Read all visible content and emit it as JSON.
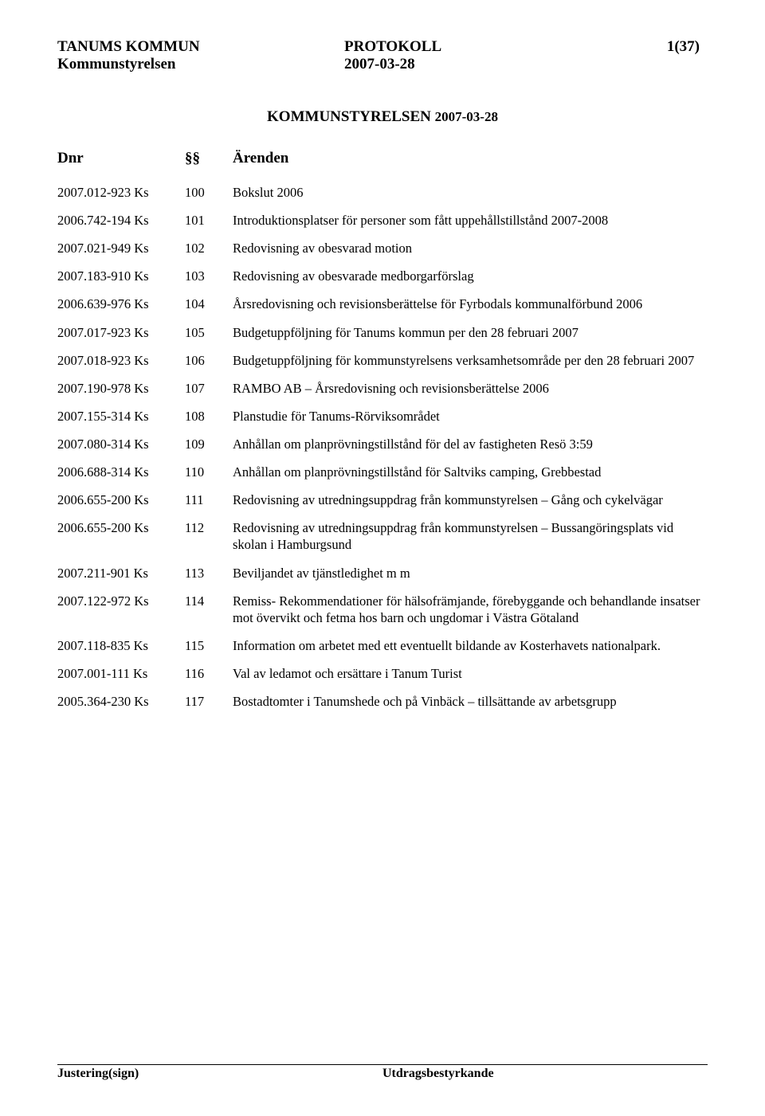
{
  "header": {
    "org": "TANUMS KOMMUN",
    "sub": "Kommunstyrelsen",
    "doc_type": "PROTOKOLL",
    "date": "2007-03-28",
    "page_indicator": "1(37)"
  },
  "title": {
    "main": "KOMMUNSTYRELSEN",
    "date": "2007-03-28"
  },
  "columns": {
    "dnr": "Dnr",
    "section": "§§",
    "subject": "Ärenden"
  },
  "rows": [
    {
      "dnr": "2007.012-923 Ks",
      "sec": "100",
      "text": "Bokslut 2006"
    },
    {
      "dnr": "2006.742-194 Ks",
      "sec": "101",
      "text": "Introduktionsplatser för personer som fått uppehållstillstånd 2007-2008"
    },
    {
      "dnr": "2007.021-949 Ks",
      "sec": "102",
      "text": "Redovisning av obesvarad motion"
    },
    {
      "dnr": "2007.183-910 Ks",
      "sec": "103",
      "text": "Redovisning av obesvarade medborgarförslag"
    },
    {
      "dnr": "2006.639-976 Ks",
      "sec": "104",
      "text": "Årsredovisning och revisionsberättelse för Fyrbodals kommunalförbund 2006"
    },
    {
      "dnr": "2007.017-923 Ks",
      "sec": "105",
      "text": "Budgetuppföljning för Tanums kommun per den 28 februari 2007"
    },
    {
      "dnr": "2007.018-923 Ks",
      "sec": "106",
      "text": "Budgetuppföljning för kommunstyrelsens verksamhetsområde per den 28 februari 2007"
    },
    {
      "dnr": "2007.190-978 Ks",
      "sec": "107",
      "text": "RAMBO AB – Årsredovisning och revisionsberättelse 2006"
    },
    {
      "dnr": "2007.155-314 Ks",
      "sec": "108",
      "text": "Planstudie för Tanums-Rörviksområdet"
    },
    {
      "dnr": "2007.080-314 Ks",
      "sec": "109",
      "text": "Anhållan om planprövningstillstånd för del av fastigheten Resö 3:59"
    },
    {
      "dnr": "2006.688-314 Ks",
      "sec": "110",
      "text": "Anhållan om planprövningstillstånd för Saltviks camping, Grebbestad"
    },
    {
      "dnr": "2006.655-200 Ks",
      "sec": "111",
      "text": "Redovisning av utredningsuppdrag från kommunstyrelsen – Gång och cykelvägar"
    },
    {
      "dnr": "2006.655-200 Ks",
      "sec": "112",
      "text": "Redovisning av utredningsuppdrag från kommunstyrelsen – Bussangöringsplats vid skolan i Hamburgsund"
    },
    {
      "dnr": "2007.211-901 Ks",
      "sec": "113",
      "text": "Beviljandet av tjänstledighet m m"
    },
    {
      "dnr": "2007.122-972 Ks",
      "sec": "114",
      "text": "Remiss- Rekommendationer för hälsofrämjande, förebyggande och behandlande insatser mot övervikt och fetma hos barn och ungdomar i Västra Götaland"
    },
    {
      "dnr": "2007.118-835 Ks",
      "sec": "115",
      "text": "Information om arbetet med ett eventuellt bildande av Kosterhavets nationalpark."
    },
    {
      "dnr": "2007.001-111 Ks",
      "sec": "116",
      "text": "Val av ledamot och ersättare i Tanum Turist"
    },
    {
      "dnr": "2005.364-230 Ks",
      "sec": "117",
      "text": "Bostadtomter i Tanumshede och på Vinbäck – tillsättande av arbetsgrupp"
    }
  ],
  "footer": {
    "left": "Justering(sign)",
    "right": "Utdragsbestyrkande"
  }
}
